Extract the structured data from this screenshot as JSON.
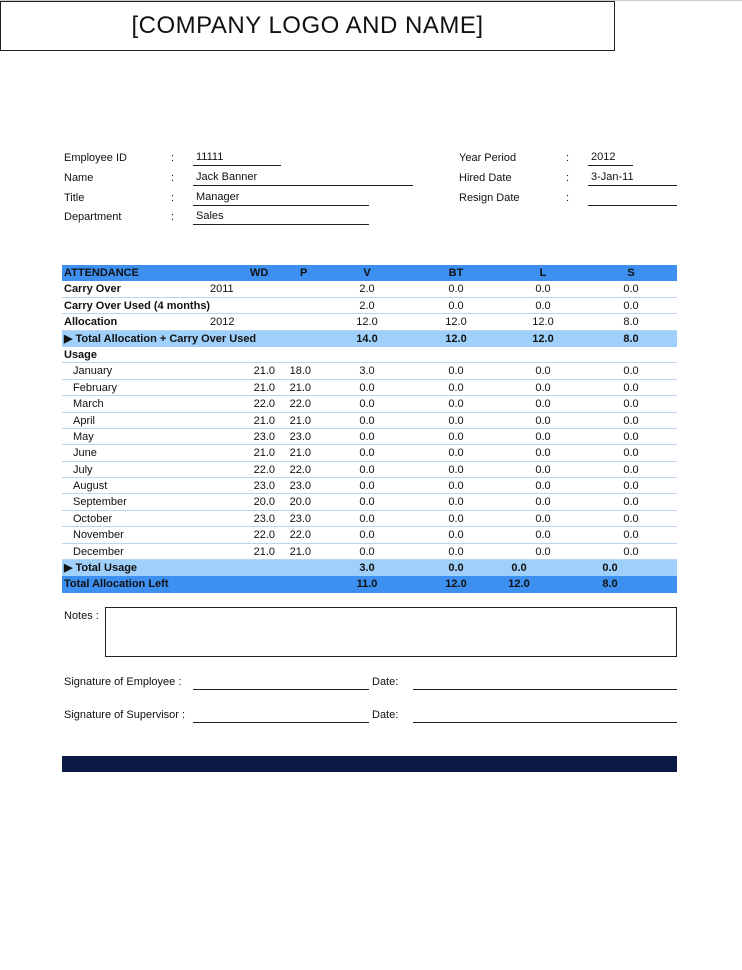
{
  "header": {
    "logo_text": "[COMPANY LOGO AND NAME]"
  },
  "info": {
    "employee_id_label": "Employee ID",
    "employee_id": "11111",
    "name_label": "Name",
    "name": "Jack Banner",
    "title_label": "Title",
    "title": "Manager",
    "department_label": "Department",
    "department": "Sales",
    "year_period_label": "Year Period",
    "year_period": "2012",
    "hired_date_label": "Hired Date",
    "hired_date": "3-Jan-11",
    "resign_date_label": "Resign Date",
    "resign_date": "",
    "colon": ":"
  },
  "table": {
    "columns": [
      "ATTENDANCE",
      "WD",
      "P",
      "V",
      "BT",
      "L",
      "S"
    ],
    "rows": [
      {
        "type": "bold",
        "label": "Carry Over",
        "year": "2011",
        "wd": "",
        "p": "",
        "v": "2.0",
        "bt": "0.0",
        "l": "0.0",
        "s": "0.0"
      },
      {
        "type": "bold",
        "label": "Carry Over Used (4 months)",
        "year": "",
        "wd": "",
        "p": "",
        "v": "2.0",
        "bt": "0.0",
        "l": "0.0",
        "s": "0.0"
      },
      {
        "type": "bold",
        "label": "Allocation",
        "year": "2012",
        "wd": "",
        "p": "",
        "v": "12.0",
        "bt": "12.0",
        "l": "12.0",
        "s": "8.0"
      },
      {
        "type": "sub",
        "label": "▶ Total Allocation + Carry Over Used",
        "year": "",
        "wd": "",
        "p": "",
        "v": "14.0",
        "bt": "12.0",
        "l": "12.0",
        "s": "8.0"
      },
      {
        "type": "bold",
        "label": "Usage",
        "year": "",
        "wd": "",
        "p": "",
        "v": "",
        "bt": "",
        "l": "",
        "s": ""
      },
      {
        "type": "month",
        "label": "January",
        "wd": "21.0",
        "p": "18.0",
        "v": "3.0",
        "bt": "0.0",
        "l": "0.0",
        "s": "0.0"
      },
      {
        "type": "month",
        "label": "February",
        "wd": "21.0",
        "p": "21.0",
        "v": "0.0",
        "bt": "0.0",
        "l": "0.0",
        "s": "0.0"
      },
      {
        "type": "month",
        "label": "March",
        "wd": "22.0",
        "p": "22.0",
        "v": "0.0",
        "bt": "0.0",
        "l": "0.0",
        "s": "0.0"
      },
      {
        "type": "month",
        "label": "April",
        "wd": "21.0",
        "p": "21.0",
        "v": "0.0",
        "bt": "0.0",
        "l": "0.0",
        "s": "0.0"
      },
      {
        "type": "month",
        "label": "May",
        "wd": "23.0",
        "p": "23.0",
        "v": "0.0",
        "bt": "0.0",
        "l": "0.0",
        "s": "0.0"
      },
      {
        "type": "month",
        "label": "June",
        "wd": "21.0",
        "p": "21.0",
        "v": "0.0",
        "bt": "0.0",
        "l": "0.0",
        "s": "0.0"
      },
      {
        "type": "month",
        "label": "July",
        "wd": "22.0",
        "p": "22.0",
        "v": "0.0",
        "bt": "0.0",
        "l": "0.0",
        "s": "0.0"
      },
      {
        "type": "month",
        "label": "August",
        "wd": "23.0",
        "p": "23.0",
        "v": "0.0",
        "bt": "0.0",
        "l": "0.0",
        "s": "0.0"
      },
      {
        "type": "month",
        "label": "September",
        "wd": "20.0",
        "p": "20.0",
        "v": "0.0",
        "bt": "0.0",
        "l": "0.0",
        "s": "0.0"
      },
      {
        "type": "month",
        "label": "October",
        "wd": "23.0",
        "p": "23.0",
        "v": "0.0",
        "bt": "0.0",
        "l": "0.0",
        "s": "0.0"
      },
      {
        "type": "month",
        "label": "November",
        "wd": "22.0",
        "p": "22.0",
        "v": "0.0",
        "bt": "0.0",
        "l": "0.0",
        "s": "0.0"
      },
      {
        "type": "month",
        "label": "December",
        "wd": "21.0",
        "p": "21.0",
        "v": "0.0",
        "bt": "0.0",
        "l": "0.0",
        "s": "0.0"
      },
      {
        "type": "sub shift",
        "label": "▶ Total Usage",
        "year": "",
        "wd": "",
        "p": "",
        "v": "3.0",
        "bt": "0.0",
        "l": "0.0",
        "s": "0.0"
      },
      {
        "type": "tot shift",
        "label": "Total Allocation Left",
        "year": "",
        "wd": "",
        "p": "",
        "v": "11.0",
        "bt": "12.0",
        "l": "12.0",
        "s": "8.0"
      }
    ]
  },
  "notes": {
    "label": "Notes :",
    "value": ""
  },
  "signatures": {
    "employee_label": "Signature of Employee :",
    "supervisor_label": "Signature of Supervisor :",
    "date_label": "Date:"
  },
  "colors": {
    "header_blue": "#3d8ff0",
    "subtotal_blue": "#9fd0fb",
    "footer_navy": "#0b1a45"
  }
}
